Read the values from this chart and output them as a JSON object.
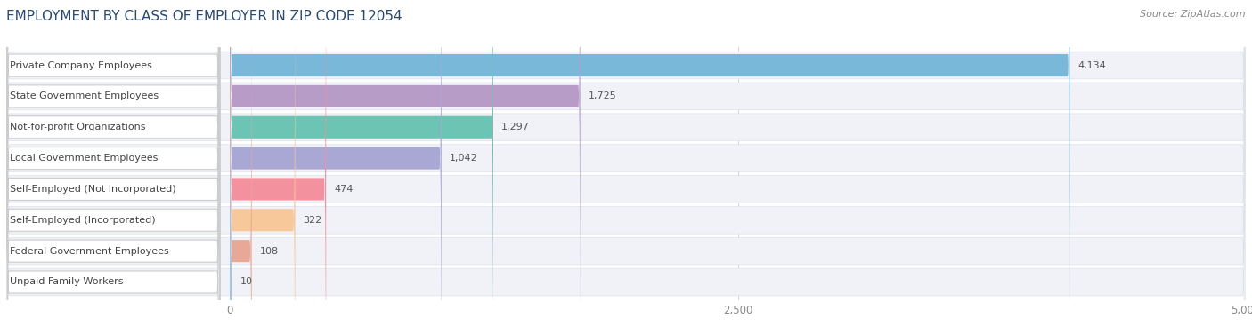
{
  "title": "EMPLOYMENT BY CLASS OF EMPLOYER IN ZIP CODE 12054",
  "source": "Source: ZipAtlas.com",
  "categories": [
    "Private Company Employees",
    "State Government Employees",
    "Not-for-profit Organizations",
    "Local Government Employees",
    "Self-Employed (Not Incorporated)",
    "Self-Employed (Incorporated)",
    "Federal Government Employees",
    "Unpaid Family Workers"
  ],
  "values": [
    4134,
    1725,
    1297,
    1042,
    474,
    322,
    108,
    10
  ],
  "bar_colors": [
    "#7ab8d9",
    "#b89cc8",
    "#6cc4b4",
    "#a9a8d4",
    "#f4919e",
    "#f7c89a",
    "#e8a898",
    "#a8c4dc"
  ],
  "xlim_max": 5000,
  "xticks": [
    0,
    2500,
    5000
  ],
  "xtick_labels": [
    "0",
    "2,500",
    "5,000"
  ],
  "background_color": "#ffffff",
  "row_bg_color": "#f0f2f7",
  "row_border_color": "#dde1ea",
  "label_bg_color": "#ffffff",
  "title_fontsize": 11,
  "title_color": "#2c4a6e",
  "source_fontsize": 8,
  "source_color": "#888888",
  "label_fontsize": 8,
  "value_fontsize": 8,
  "bar_label_color": "#444444",
  "value_label_color": "#555555"
}
